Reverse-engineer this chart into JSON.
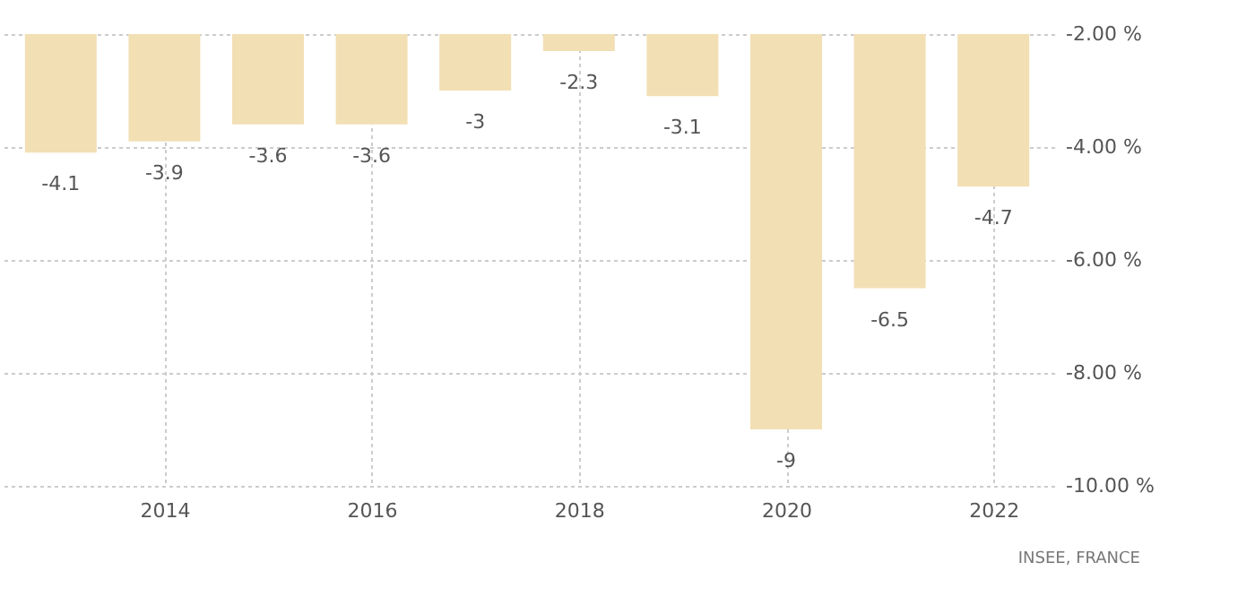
{
  "chart_data": {
    "type": "bar",
    "categories": [
      null,
      "2014",
      null,
      "2016",
      null,
      "2018",
      null,
      "2020",
      null,
      "2022"
    ],
    "values": [
      -4.1,
      -3.9,
      -3.6,
      -3.6,
      -3,
      -2.3,
      -3.1,
      -9,
      -6.5,
      -4.7
    ],
    "color": "#f2dfb4",
    "data_labels": true,
    "grid": true,
    "ylim": [
      -10,
      -2
    ],
    "yticks": [
      {
        "value": -2,
        "label": "-2.00 %"
      },
      {
        "value": -4,
        "label": "-4.00 %"
      },
      {
        "value": -6,
        "label": "-6.00 %"
      },
      {
        "value": -8,
        "label": "-8.00 %"
      },
      {
        "value": -10,
        "label": "-10.00 %"
      }
    ],
    "annotations": [
      "INSEE, FRANCE"
    ]
  }
}
